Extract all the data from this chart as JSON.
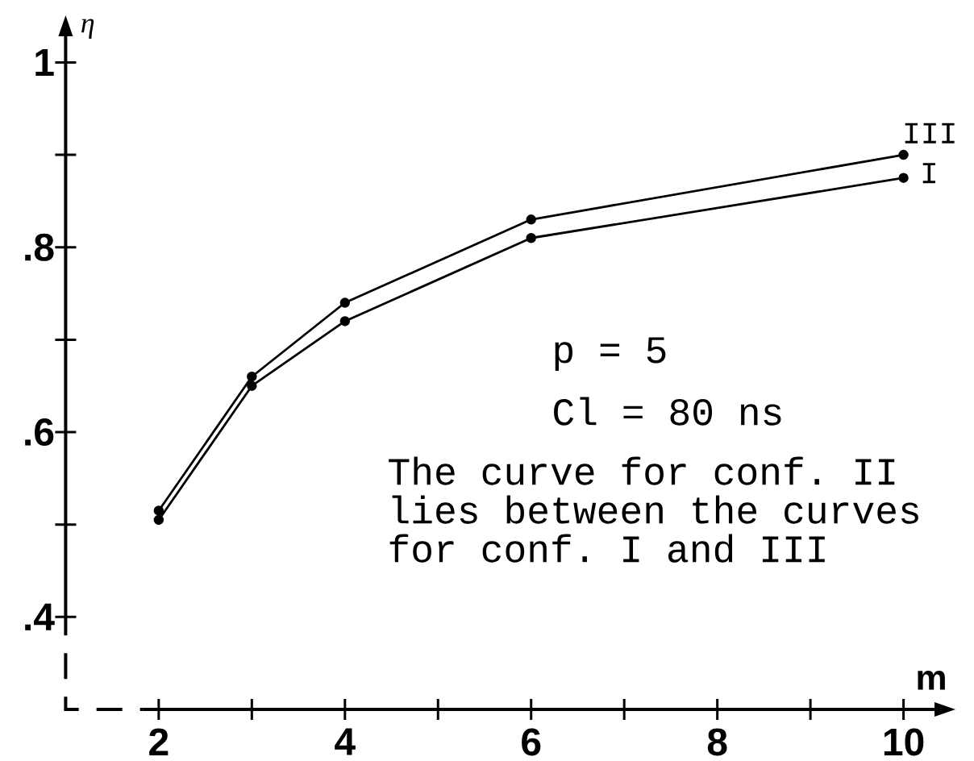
{
  "chart_data": {
    "type": "line",
    "xlabel": "m",
    "ylabel": "η",
    "x": [
      2,
      3,
      4,
      6,
      10
    ],
    "series": [
      {
        "name": "III",
        "color": "#000000",
        "values": [
          0.515,
          0.66,
          0.74,
          0.83,
          0.9
        ]
      },
      {
        "name": "I",
        "color": "#000000",
        "values": [
          0.505,
          0.65,
          0.72,
          0.81,
          0.875
        ]
      }
    ],
    "xlim": [
      1,
      10.35
    ],
    "ylim": [
      0.3,
      1.03
    ],
    "xticks": [
      2,
      {
        "value": 3,
        "label": null
      },
      4,
      {
        "value": 5,
        "label": null
      },
      6,
      {
        "value": 7,
        "label": null
      },
      8,
      {
        "value": 9,
        "label": null
      },
      10
    ],
    "yticks": [
      {
        "value": 0.4,
        "label": ".4"
      },
      {
        "value": 0.5,
        "label": null
      },
      {
        "value": 0.6,
        "label": ".6"
      },
      {
        "value": 0.7,
        "label": null
      },
      {
        "value": 0.8,
        "label": ".8"
      },
      {
        "value": 0.9,
        "label": null
      },
      1
    ],
    "marker": "circle",
    "line_style": "solid",
    "annotations": [
      "p = 5",
      "Cl = 80 ns",
      "The curve for conf. II lies between the curves for conf. I and III"
    ]
  }
}
